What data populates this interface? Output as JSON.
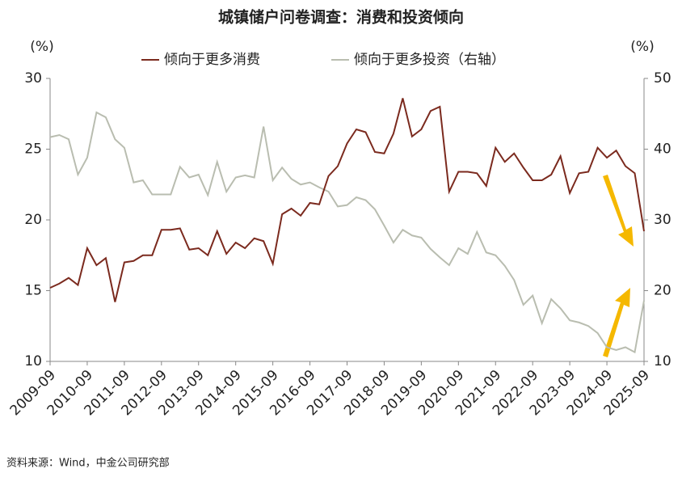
{
  "chart_data": {
    "type": "line",
    "title": "城镇储户问卷调查：消费和投资倾向",
    "ylabel": "(%)",
    "y2label": "(%)",
    "source": "资料来源：Wind，中金公司研究部",
    "categories": [
      "2009-09",
      null,
      null,
      null,
      "2010-09",
      null,
      null,
      null,
      "2011-09",
      null,
      null,
      null,
      "2012-09",
      null,
      null,
      null,
      "2013-09",
      null,
      null,
      null,
      "2014-09",
      null,
      null,
      null,
      "2015-09",
      null,
      null,
      null,
      "2016-09",
      null,
      null,
      null,
      "2017-09",
      null,
      null,
      null,
      "2018-09",
      null,
      null,
      null,
      "2019-09",
      null,
      null,
      null,
      "2020-09",
      null,
      null,
      null,
      "2021-09",
      null,
      null,
      null,
      "2022-09",
      null,
      null,
      null,
      "2023-09",
      null,
      null,
      null,
      "2024-09",
      null,
      null,
      null,
      "2025-09"
    ],
    "ylim": [
      10,
      30
    ],
    "yticks": [
      10,
      15,
      20,
      25,
      30
    ],
    "y2lim": [
      10,
      50
    ],
    "y2ticks": [
      10,
      20,
      30,
      40,
      50
    ],
    "series": [
      {
        "name": "倾向于更多消费",
        "color": "#7b2a1e",
        "values": [
          15.2,
          15.5,
          15.9,
          15.4,
          18.0,
          16.8,
          17.3,
          14.2,
          17.0,
          17.1,
          17.5,
          17.5,
          19.3,
          19.3,
          19.4,
          17.9,
          18.0,
          17.5,
          19.2,
          17.6,
          18.4,
          18.0,
          18.7,
          18.5,
          16.9,
          20.4,
          20.8,
          20.3,
          21.2,
          21.1,
          23.1,
          23.8,
          25.4,
          26.4,
          26.2,
          24.8,
          24.7,
          26.1,
          28.6,
          25.9,
          26.4,
          27.7,
          28.0,
          22.0,
          23.4,
          23.4,
          23.3,
          22.4,
          25.1,
          24.1,
          24.7,
          23.7,
          22.8,
          22.8,
          23.2,
          24.5,
          21.9,
          23.3,
          23.4,
          25.1,
          24.4,
          24.9,
          23.8,
          23.3,
          19.2
        ]
      },
      {
        "name": "倾向于更多投资（右轴）",
        "color": "#b9bdb0",
        "axis": "y2",
        "values": [
          41.7,
          42.0,
          41.4,
          36.4,
          38.8,
          45.2,
          44.5,
          41.4,
          40.2,
          35.3,
          35.6,
          33.6,
          33.6,
          33.6,
          37.5,
          36.0,
          36.4,
          33.5,
          38.2,
          34.0,
          36.0,
          36.3,
          36.0,
          43.2,
          35.6,
          37.4,
          35.8,
          35.0,
          35.3,
          34.6,
          34.0,
          31.9,
          32.1,
          33.2,
          32.8,
          31.5,
          29.2,
          26.8,
          28.6,
          27.8,
          27.5,
          25.9,
          24.7,
          23.6,
          26.0,
          25.2,
          28.3,
          25.4,
          25.0,
          23.5,
          21.5,
          18.0,
          19.3,
          15.4,
          18.8,
          17.5,
          15.8,
          15.5,
          15.0,
          14.0,
          12.0,
          11.6,
          12.0,
          11.3,
          18.6
        ]
      }
    ]
  }
}
